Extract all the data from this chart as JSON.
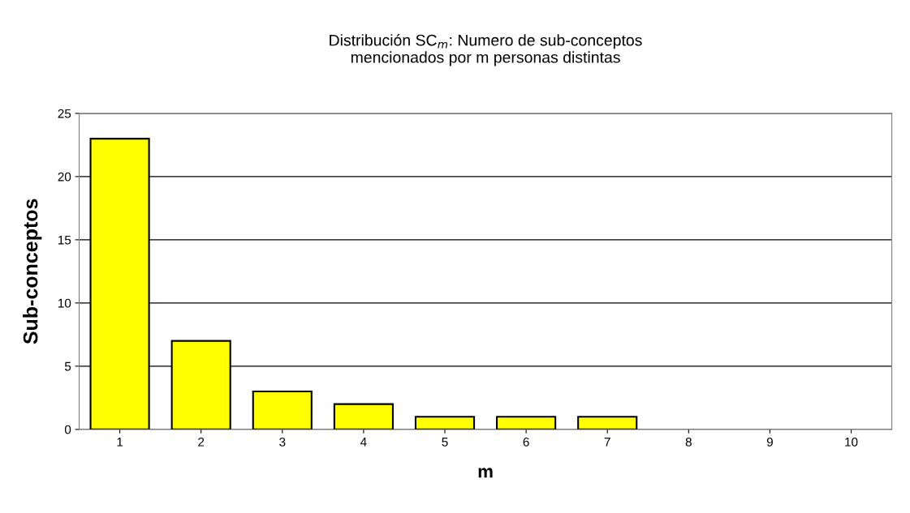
{
  "chart_data": {
    "type": "bar",
    "title": "Distribución SC$_{m}$: Numero de sub-conceptos\nmencionados por m personas distintas",
    "xlabel": "m",
    "ylabel": "Sub-conceptos",
    "categories": [
      "1",
      "2",
      "3",
      "4",
      "5",
      "6",
      "7",
      "8",
      "9",
      "10"
    ],
    "values": [
      23,
      7,
      3,
      2,
      1,
      1,
      1,
      0,
      0,
      0
    ],
    "color": "#ffff00",
    "ylim": [
      0,
      25
    ],
    "yticks": [
      0,
      5,
      10,
      15,
      20,
      25
    ],
    "grid": "y",
    "legend": false
  }
}
